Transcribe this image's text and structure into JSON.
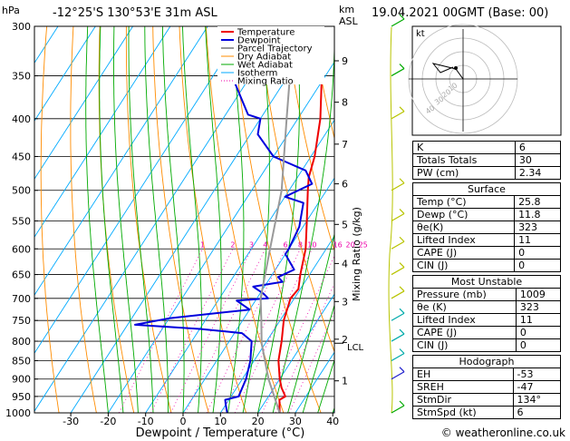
{
  "header": {
    "hpa_unit": "hPa",
    "location": "-12°25'S  130°53'E  31m  ASL",
    "km_unit_1": "km",
    "km_unit_2": "ASL",
    "datetime": "19.04.2021  00GMT  (Base: 00)"
  },
  "footer": {
    "credit": "© weatheronline.co.uk"
  },
  "hodograph": {
    "unit_label": "kt",
    "ring_labels": [
      "10",
      "20",
      "30",
      "40"
    ]
  },
  "mixing_ratio_label": "Mixing Ratio  (g/kg)",
  "colors": {
    "temperature": "#ee0000",
    "dewpoint": "#0000dd",
    "parcel": "#999999",
    "dry_adiabat": "#ff8c00",
    "wet_adiabat": "#00aa00",
    "isotherm": "#00aaff",
    "mixing_ratio": "#ee00aa"
  },
  "chart_data": {
    "type": "line",
    "title": "-12°25'S  130°53'E  31m  ASL",
    "xlabel": "Dewpoint / Temperature (°C)",
    "ylabel": "hPa",
    "xlim": [
      -35,
      40
    ],
    "ylim": [
      1000,
      300
    ],
    "x_ticks": [
      -30,
      -20,
      -10,
      0,
      10,
      20,
      30,
      40
    ],
    "pressure_ticks": [
      300,
      350,
      400,
      450,
      500,
      550,
      600,
      650,
      700,
      750,
      800,
      850,
      900,
      950,
      1000
    ],
    "km_ticks": [
      {
        "km": "1",
        "p": 905
      },
      {
        "km": "2",
        "p": 795
      },
      {
        "km": "3",
        "p": 707
      },
      {
        "km": "4",
        "p": 628
      },
      {
        "km": "5",
        "p": 556
      },
      {
        "km": "6",
        "p": 490
      },
      {
        "km": "7",
        "p": 433
      },
      {
        "km": "8",
        "p": 380
      },
      {
        "km": "9",
        "p": 334
      }
    ],
    "lcl": {
      "label": "LCL",
      "p": 805
    },
    "mixing_ratio_values": [
      "1",
      "2",
      "3",
      "4",
      "6",
      "8",
      "10",
      "16",
      "20",
      "25"
    ],
    "legend": [
      "Temperature",
      "Dewpoint",
      "Parcel Trajectory",
      "Dry Adiabat",
      "Wet Adiabat",
      "Isotherm",
      "Mixing Ratio"
    ],
    "series": [
      {
        "name": "Temperature",
        "points": [
          [
            1000,
            25.8
          ],
          [
            960,
            23.5
          ],
          [
            950,
            24.5
          ],
          [
            925,
            22
          ],
          [
            900,
            20
          ],
          [
            850,
            16.5
          ],
          [
            800,
            14
          ],
          [
            750,
            11
          ],
          [
            725,
            10
          ],
          [
            700,
            9
          ],
          [
            680,
            9.5
          ],
          [
            650,
            7.5
          ],
          [
            600,
            4.5
          ],
          [
            550,
            0
          ],
          [
            500,
            -5
          ],
          [
            480,
            -7
          ],
          [
            450,
            -9
          ],
          [
            400,
            -14
          ],
          [
            350,
            -21
          ],
          [
            310,
            -28
          ],
          [
            300,
            -30
          ]
        ]
      },
      {
        "name": "Dewpoint",
        "points": [
          [
            1000,
            11.8
          ],
          [
            975,
            10
          ],
          [
            960,
            9
          ],
          [
            950,
            12
          ],
          [
            900,
            11
          ],
          [
            850,
            9
          ],
          [
            800,
            6
          ],
          [
            780,
            2
          ],
          [
            770,
            -10
          ],
          [
            760,
            -28
          ],
          [
            745,
            -20
          ],
          [
            725,
            0
          ],
          [
            705,
            -5
          ],
          [
            700,
            3
          ],
          [
            690,
            1
          ],
          [
            675,
            -3
          ],
          [
            665,
            4
          ],
          [
            655,
            2
          ],
          [
            640,
            5
          ],
          [
            610,
            0
          ],
          [
            600,
            0
          ],
          [
            560,
            -1
          ],
          [
            520,
            -4
          ],
          [
            510,
            -10
          ],
          [
            490,
            -5
          ],
          [
            470,
            -9
          ],
          [
            450,
            -20
          ],
          [
            420,
            -28
          ],
          [
            400,
            -30
          ],
          [
            395,
            -34
          ],
          [
            350,
            -45
          ],
          [
            330,
            -41
          ],
          [
            310,
            -37
          ],
          [
            300,
            -37
          ]
        ]
      },
      {
        "name": "Parcel Trajectory",
        "points": [
          [
            1000,
            25.8
          ],
          [
            900,
            17
          ],
          [
            805,
            9
          ],
          [
            750,
            5
          ],
          [
            700,
            1
          ],
          [
            600,
            -5
          ],
          [
            500,
            -12
          ],
          [
            400,
            -23
          ],
          [
            300,
            -37
          ]
        ]
      }
    ]
  },
  "indices": {
    "general": [
      {
        "label": "K",
        "value": "6"
      },
      {
        "label": "Totals Totals",
        "value": "30"
      },
      {
        "label": "PW (cm)",
        "value": "2.34"
      }
    ],
    "surface": {
      "title": "Surface",
      "rows": [
        {
          "label": "Temp (°C)",
          "value": "25.8"
        },
        {
          "label": "Dewp (°C)",
          "value": "11.8"
        },
        {
          "label": "θe(K)",
          "value": "323"
        },
        {
          "label": "Lifted Index",
          "value": "11"
        },
        {
          "label": "CAPE (J)",
          "value": "0"
        },
        {
          "label": "CIN (J)",
          "value": "0"
        }
      ]
    },
    "most_unstable": {
      "title": "Most Unstable",
      "rows": [
        {
          "label": "Pressure (mb)",
          "value": "1009"
        },
        {
          "label": "θe (K)",
          "value": "323"
        },
        {
          "label": "Lifted Index",
          "value": "11"
        },
        {
          "label": "CAPE (J)",
          "value": "0"
        },
        {
          "label": "CIN (J)",
          "value": "0"
        }
      ]
    },
    "hodograph": {
      "title": "Hodograph",
      "rows": [
        {
          "label": "EH",
          "value": "-53"
        },
        {
          "label": "SREH",
          "value": "-47"
        },
        {
          "label": "StmDir",
          "value": "134°"
        },
        {
          "label": "StmSpd (kt)",
          "value": "6"
        }
      ]
    }
  }
}
